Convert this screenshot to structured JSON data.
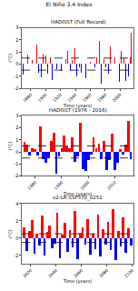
{
  "title": "El Niño 3.4 Index",
  "chart_data": [
    {
      "type": "bar",
      "title": "HADISST (Full Record)",
      "x_label": "Time (years)",
      "y_label": "(°C)",
      "x": [
        1870,
        1873,
        1876,
        1879,
        1882,
        1885,
        1888,
        1891,
        1894,
        1897,
        1900,
        1903,
        1906,
        1909,
        1912,
        1915,
        1918,
        1921,
        1924,
        1927,
        1930,
        1933,
        1936,
        1939,
        1942,
        1945,
        1948,
        1951,
        1954,
        1957,
        1960,
        1963,
        1966,
        1969,
        1972,
        1975,
        1978,
        1981,
        1984,
        1987,
        1990,
        1993,
        1996,
        1999,
        2002,
        2005,
        2008,
        2011,
        2014,
        2015
      ],
      "values": [
        -0.9,
        -0.6,
        0.8,
        -0.5,
        0.3,
        0.9,
        1.6,
        -0.7,
        -1.1,
        0.9,
        0.7,
        -0.8,
        0.6,
        -1.3,
        0.9,
        -0.4,
        1.2,
        -0.6,
        -1.0,
        0.4,
        1.1,
        -0.6,
        0.3,
        1.3,
        -1.0,
        -0.3,
        -0.7,
        0.9,
        -1.2,
        1.4,
        0.2,
        0.8,
        -0.3,
        0.6,
        1.9,
        -1.6,
        0.4,
        -0.3,
        -0.8,
        1.5,
        0.4,
        0.6,
        -0.6,
        -1.5,
        1.1,
        0.5,
        -1.4,
        -1.0,
        0.6,
        2.6
      ],
      "colors": [
        "blue",
        "blue",
        "red",
        "blue",
        "red",
        "red",
        "red",
        "blue",
        "blue",
        "red",
        "red",
        "blue",
        "red",
        "blue",
        "red",
        "blue",
        "red",
        "blue",
        "blue",
        "red",
        "red",
        "blue",
        "red",
        "red",
        "blue",
        "blue",
        "blue",
        "red",
        "blue",
        "red",
        "red",
        "red",
        "blue",
        "red",
        "red",
        "blue",
        "red",
        "blue",
        "blue",
        "red",
        "red",
        "red",
        "blue",
        "blue",
        "red",
        "red",
        "blue",
        "blue",
        "red",
        "red"
      ],
      "xlim": [
        1868,
        2018
      ],
      "xticks": [
        1880,
        1900,
        1920,
        1940,
        1960,
        1980,
        2000
      ],
      "ylim": [
        -2,
        3
      ],
      "yticks": [
        -2,
        -1,
        0,
        1,
        2,
        3
      ],
      "reference_lines": [
        0.5,
        -0.5
      ]
    },
    {
      "type": "bar",
      "title": "HADISST (1976 - 2016)",
      "x_label": "Time (years)",
      "y_label": "(°C)",
      "x": [
        1976,
        1977,
        1978,
        1979,
        1980,
        1981,
        1982,
        1983,
        1984,
        1985,
        1986,
        1987,
        1988,
        1989,
        1990,
        1991,
        1992,
        1993,
        1994,
        1995,
        1996,
        1997,
        1998,
        1999,
        2000,
        2001,
        2002,
        2003,
        2004,
        2005,
        2006,
        2007,
        2008,
        2009,
        2010,
        2011,
        2012,
        2013,
        2014,
        2015,
        2016
      ],
      "values": [
        0.8,
        0.6,
        -0.3,
        0.3,
        0.2,
        -0.3,
        2.1,
        -0.6,
        -0.9,
        -0.5,
        0.9,
        1.6,
        -1.8,
        -0.4,
        0.3,
        1.4,
        0.5,
        0.3,
        1.2,
        -0.8,
        -0.4,
        2.4,
        -1.4,
        -1.6,
        -0.7,
        -0.2,
        1.2,
        0.3,
        0.7,
        -0.6,
        0.9,
        -1.5,
        -0.7,
        1.5,
        -1.5,
        -0.9,
        0.2,
        -0.2,
        0.6,
        2.6,
        -0.6
      ],
      "colors": [
        "red",
        "red",
        "blue",
        "red",
        "red",
        "blue",
        "red",
        "blue",
        "blue",
        "blue",
        "red",
        "red",
        "blue",
        "blue",
        "red",
        "red",
        "red",
        "red",
        "red",
        "blue",
        "blue",
        "red",
        "blue",
        "blue",
        "blue",
        "blue",
        "red",
        "red",
        "red",
        "blue",
        "red",
        "blue",
        "blue",
        "red",
        "blue",
        "blue",
        "red",
        "blue",
        "red",
        "red",
        "blue"
      ],
      "xlim": [
        1975,
        2017
      ],
      "xticks": [
        1980,
        1990,
        2000,
        2010
      ],
      "ylim": [
        -2,
        3
      ],
      "yticks": [
        -2,
        -1,
        0,
        1,
        2,
        3
      ],
      "reference_lines": [
        0.5,
        -0.5
      ]
    },
    {
      "type": "bar",
      "title": "v2-LR.SSP370_0251",
      "x_label": "Time (years)",
      "y_label": "(°C)",
      "x": [
        2015,
        2017,
        2019,
        2021,
        2023,
        2025,
        2027,
        2029,
        2031,
        2033,
        2035,
        2037,
        2039,
        2041,
        2043,
        2045,
        2047,
        2049,
        2051,
        2053,
        2055,
        2057,
        2059,
        2061,
        2063,
        2065,
        2067,
        2069,
        2071,
        2073,
        2075,
        2077,
        2079,
        2081,
        2083,
        2085,
        2087,
        2089,
        2091,
        2093,
        2095,
        2097,
        2099
      ],
      "values": [
        1.2,
        -1.5,
        0.8,
        2.1,
        -1.8,
        0.5,
        -0.9,
        2.6,
        -2.0,
        0.7,
        1.5,
        -1.2,
        -0.6,
        2.9,
        -2.3,
        0.4,
        1.8,
        -1.6,
        0.9,
        -1.1,
        3.1,
        -2.4,
        0.6,
        1.3,
        -0.8,
        2.2,
        -1.9,
        0.5,
        -1.3,
        2.7,
        -2.1,
        1.0,
        -0.7,
        1.9,
        -1.4,
        3.4,
        -2.5,
        0.8,
        -1.0,
        2.4,
        -1.7,
        1.1,
        -0.9
      ],
      "colors": [
        "red",
        "blue",
        "red",
        "red",
        "blue",
        "red",
        "blue",
        "red",
        "blue",
        "red",
        "red",
        "blue",
        "blue",
        "red",
        "blue",
        "red",
        "red",
        "blue",
        "red",
        "blue",
        "red",
        "blue",
        "red",
        "red",
        "blue",
        "red",
        "blue",
        "red",
        "blue",
        "red",
        "blue",
        "red",
        "blue",
        "red",
        "blue",
        "red",
        "blue",
        "red",
        "blue",
        "red",
        "blue",
        "red",
        "blue"
      ],
      "xlim": [
        2013,
        2101
      ],
      "xticks": [
        2020,
        2040,
        2060,
        2080,
        2100
      ],
      "ylim": [
        -3,
        4
      ],
      "yticks": [
        -2,
        0,
        2,
        4
      ],
      "reference_lines": [
        0.5,
        -0.5
      ]
    }
  ]
}
